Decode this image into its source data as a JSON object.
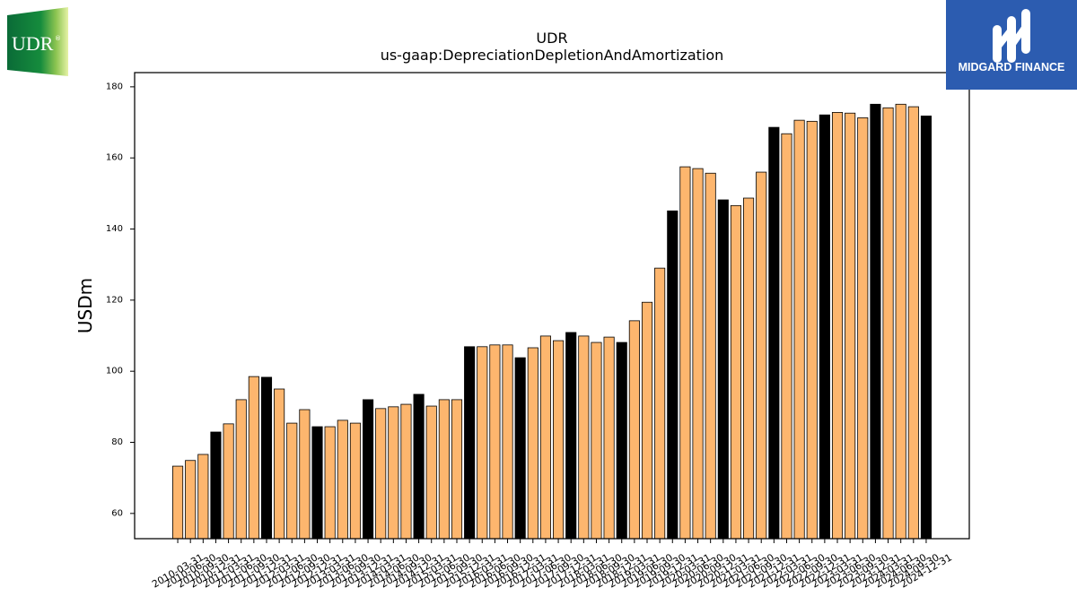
{
  "logos": {
    "udr": {
      "text": "UDR",
      "registered_mark": "®",
      "gradient": [
        "#0a6b37",
        "#168c3d",
        "#8cc451",
        "#e6f2a6"
      ]
    },
    "midgard": {
      "text": "MIDGARD FINANCE",
      "icon": "midgard-m-icon",
      "background": "#2c5cb0"
    }
  },
  "chart_data": {
    "type": "bar",
    "title": "UDR",
    "subtitle": "us-gaap:DepreciationDepletionAndAmortization",
    "ylabel": "USDm",
    "ylim": [
      52.9,
      184.0
    ],
    "yticks": [
      60,
      80,
      100,
      120,
      140,
      160,
      180
    ],
    "grid": false,
    "colors": {
      "bar": "#FDB66E",
      "year_end_bar": "#000000",
      "edge": "#000000"
    },
    "categories": [
      "2010-03-31",
      "2010-06-30",
      "2010-09-30",
      "2010-12-31",
      "2011-03-31",
      "2011-06-30",
      "2011-09-30",
      "2011-12-31",
      "2012-03-31",
      "2012-06-30",
      "2012-09-30",
      "2012-12-31",
      "2013-03-31",
      "2013-06-30",
      "2013-09-30",
      "2013-12-31",
      "2014-03-31",
      "2014-06-30",
      "2014-09-30",
      "2014-12-31",
      "2015-03-31",
      "2015-06-30",
      "2015-09-30",
      "2015-12-31",
      "2016-03-31",
      "2016-06-30",
      "2016-09-30",
      "2016-12-31",
      "2017-03-31",
      "2017-06-30",
      "2017-09-30",
      "2017-12-31",
      "2018-03-31",
      "2018-06-30",
      "2018-09-30",
      "2018-12-31",
      "2019-03-31",
      "2019-06-30",
      "2019-09-30",
      "2019-12-31",
      "2020-03-31",
      "2020-06-30",
      "2020-09-30",
      "2020-12-31",
      "2021-03-31",
      "2021-06-30",
      "2021-09-30",
      "2021-12-31",
      "2022-03-31",
      "2022-06-30",
      "2022-09-30",
      "2022-12-31",
      "2023-03-31",
      "2023-06-30",
      "2023-09-30",
      "2023-12-31",
      "2024-03-31",
      "2024-06-30",
      "2024-09-30",
      "2024-12-31"
    ],
    "values": [
      73.3,
      74.9,
      76.6,
      82.9,
      85.2,
      92.0,
      98.5,
      98.3,
      95.0,
      85.4,
      89.2,
      84.4,
      84.4,
      86.2,
      85.4,
      92.0,
      89.5,
      90.0,
      90.7,
      93.5,
      90.2,
      92.0,
      92.0,
      106.9,
      106.9,
      107.4,
      107.4,
      103.8,
      106.6,
      109.9,
      108.6,
      110.9,
      109.9,
      108.1,
      109.6,
      108.1,
      114.2,
      119.4,
      129.0,
      145.1,
      157.5,
      157.0,
      155.7,
      148.2,
      146.6,
      148.7,
      156.0,
      168.6,
      166.8,
      170.6,
      170.3,
      172.1,
      172.8,
      172.6,
      171.3,
      175.1,
      174.1,
      175.1,
      174.4,
      171.8
    ]
  }
}
